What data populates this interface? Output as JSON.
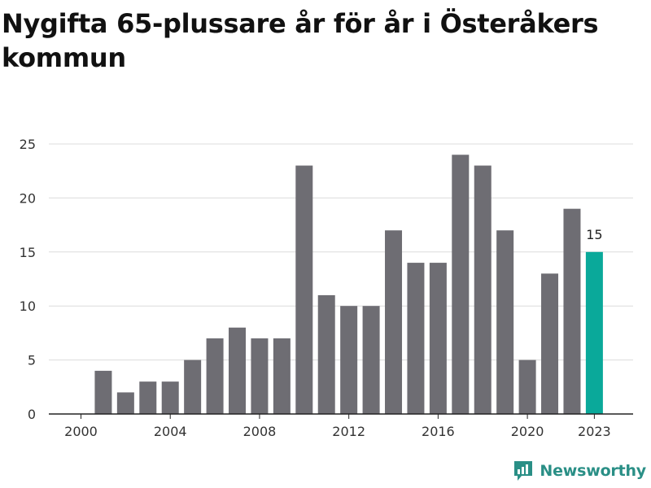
{
  "page": {
    "title": "Nygifta 65-plussare år för år i Österåkers kommun",
    "brand": "Newsworthy"
  },
  "colors": {
    "bar": "#6e6d73",
    "highlight": "#0aa99a",
    "grid": "#dcdcdc",
    "brand": "#2a8f86"
  },
  "chart_data": {
    "type": "bar",
    "title": "Nygifta 65-plussare år för år i Österåkers kommun",
    "xlabel": "",
    "ylabel": "",
    "categories": [
      "2000",
      "2001",
      "2002",
      "2003",
      "2004",
      "2005",
      "2006",
      "2007",
      "2008",
      "2009",
      "2010",
      "2011",
      "2012",
      "2013",
      "2014",
      "2015",
      "2016",
      "2017",
      "2018",
      "2019",
      "2020",
      "2021",
      "2022",
      "2023"
    ],
    "values": [
      0,
      4,
      2,
      3,
      3,
      5,
      7,
      8,
      7,
      7,
      23,
      11,
      10,
      10,
      17,
      14,
      14,
      24,
      23,
      17,
      5,
      13,
      19,
      15
    ],
    "x_tick_labels": [
      "2000",
      "2004",
      "2008",
      "2012",
      "2016",
      "2020",
      "2023"
    ],
    "y_ticks": [
      0,
      5,
      10,
      15,
      20,
      25
    ],
    "ylim": [
      0,
      25
    ],
    "grid": true,
    "highlight": {
      "category": "2023",
      "label": "15"
    }
  }
}
